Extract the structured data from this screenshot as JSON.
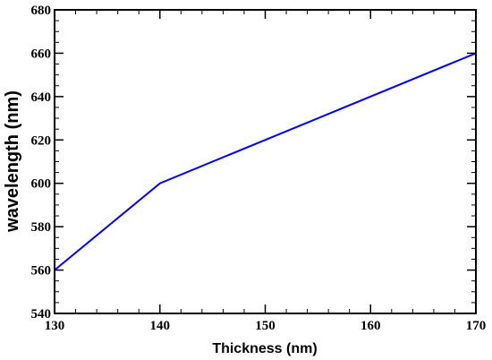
{
  "chart_data": {
    "type": "line",
    "xlabel": "Thickness (nm)",
    "ylabel": "wavelength (nm)",
    "xlim": [
      130,
      170
    ],
    "ylim": [
      540,
      680
    ],
    "xticks": [
      130,
      140,
      150,
      160,
      170
    ],
    "yticks": [
      540,
      560,
      580,
      600,
      620,
      640,
      660,
      680
    ],
    "grid": false,
    "series": [
      {
        "x": [
          130,
          140,
          170
        ],
        "y": [
          560,
          600,
          660
        ],
        "color": "#0000ff"
      }
    ]
  }
}
